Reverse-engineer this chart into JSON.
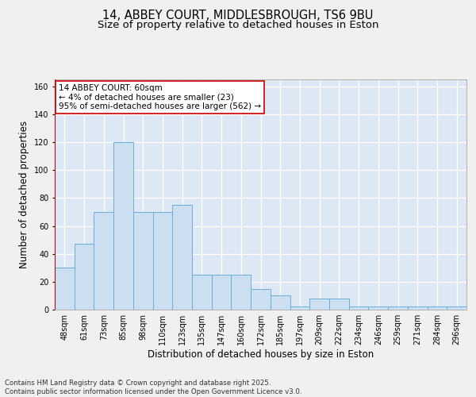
{
  "title1": "14, ABBEY COURT, MIDDLESBROUGH, TS6 9BU",
  "title2": "Size of property relative to detached houses in Eston",
  "xlabel": "Distribution of detached houses by size in Eston",
  "ylabel": "Number of detached properties",
  "categories": [
    "48sqm",
    "61sqm",
    "73sqm",
    "85sqm",
    "98sqm",
    "110sqm",
    "123sqm",
    "135sqm",
    "147sqm",
    "160sqm",
    "172sqm",
    "185sqm",
    "197sqm",
    "209sqm",
    "222sqm",
    "234sqm",
    "246sqm",
    "259sqm",
    "271sqm",
    "284sqm",
    "296sqm"
  ],
  "values": [
    30,
    47,
    70,
    120,
    70,
    70,
    75,
    25,
    25,
    25,
    15,
    10,
    2,
    8,
    8,
    2,
    2,
    2,
    2,
    2,
    2
  ],
  "bar_color": "#ccdff0",
  "bar_edge_color": "#6aaed6",
  "annotation_text": "14 ABBEY COURT: 60sqm\n← 4% of detached houses are smaller (23)\n95% of semi-detached houses are larger (562) →",
  "annotation_box_color": "#ffffff",
  "annotation_box_edgecolor": "#cc0000",
  "ylim": [
    0,
    165
  ],
  "yticks": [
    0,
    20,
    40,
    60,
    80,
    100,
    120,
    140,
    160
  ],
  "background_color": "#dde8f4",
  "grid_color": "#ffffff",
  "vline_color": "#cc0000",
  "footer_text": "Contains HM Land Registry data © Crown copyright and database right 2025.\nContains public sector information licensed under the Open Government Licence v3.0.",
  "title1_fontsize": 10.5,
  "title2_fontsize": 9.5,
  "tick_fontsize": 7,
  "label_fontsize": 8.5,
  "annotation_fontsize": 7.5,
  "footer_fontsize": 6.2
}
